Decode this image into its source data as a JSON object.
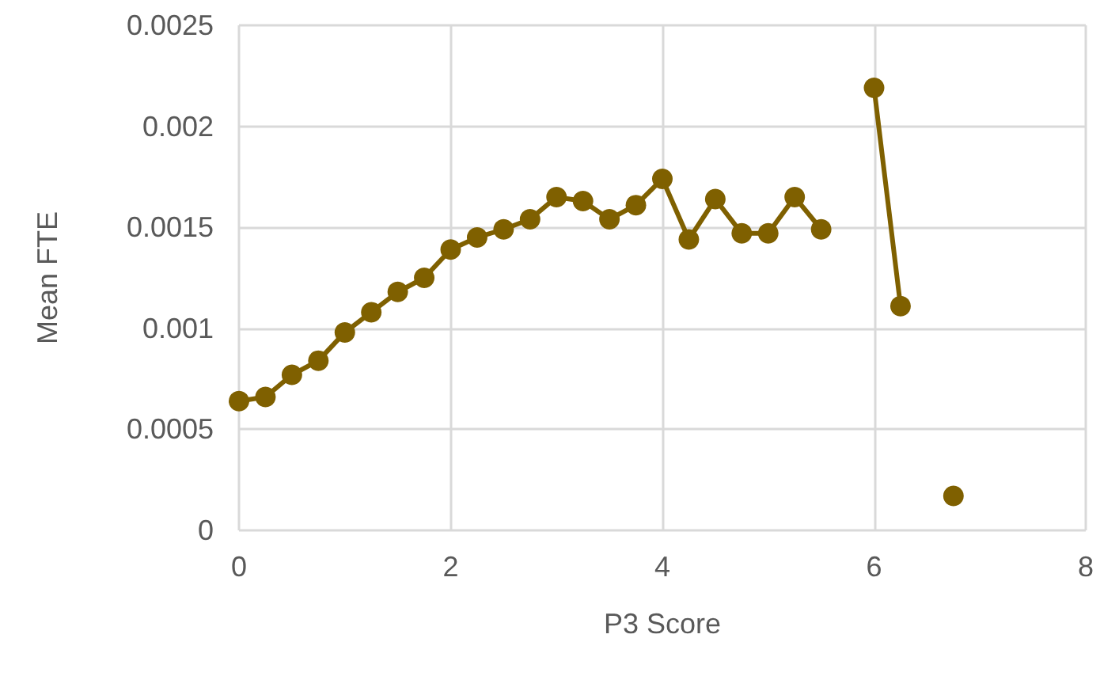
{
  "chart_data": {
    "type": "line",
    "xlabel": "P3 Score",
    "ylabel": "Mean FTE",
    "x": [
      0,
      0.25,
      0.5,
      0.75,
      1,
      1.25,
      1.5,
      1.75,
      2,
      2.25,
      2.5,
      2.75,
      3,
      3.25,
      3.5,
      3.75,
      4,
      4.25,
      4.5,
      4.75,
      5,
      5.25,
      5.5,
      5.75,
      6,
      6.25,
      6.5,
      6.75
    ],
    "series": [
      {
        "color": "#7f6000",
        "values": [
          0.00064,
          0.00066,
          0.00077,
          0.00084,
          0.00098,
          0.00108,
          0.00118,
          0.00125,
          0.00139,
          0.00145,
          0.00149,
          0.00154,
          0.00165,
          0.00163,
          0.00154,
          0.00161,
          0.00174,
          0.00144,
          0.00164,
          0.00147,
          0.00147,
          0.00165,
          0.00149,
          null,
          0.00219,
          0.00111,
          null,
          0.00017
        ]
      }
    ],
    "xlim": [
      0,
      8
    ],
    "xticks": [
      0,
      2,
      4,
      6,
      8
    ],
    "ylim": [
      0,
      0.0025
    ],
    "yticks": [
      0,
      0.0005,
      0.001,
      0.0015,
      0.002,
      0.0025
    ],
    "grid": true,
    "marker": "circle",
    "line_style": "solid"
  }
}
